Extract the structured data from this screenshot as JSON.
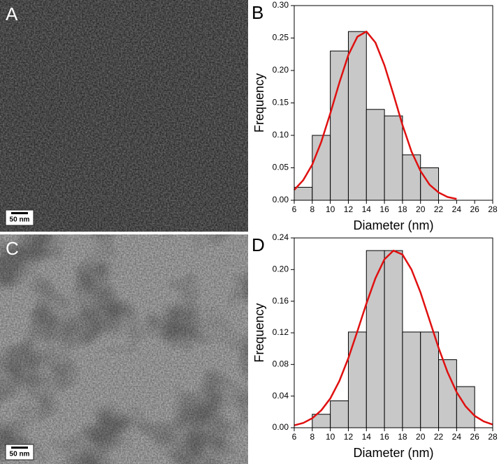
{
  "panels": [
    {
      "label": "A",
      "scale_bar": "50 nm"
    },
    {
      "label": "C",
      "scale_bar": "50 nm"
    }
  ],
  "chart_data": [
    {
      "type": "histogram",
      "panel_label": "B",
      "xlabel": "Diameter (nm)",
      "ylabel": "Frequency",
      "bins": [
        6,
        8,
        10,
        12,
        14,
        16,
        18,
        20,
        22
      ],
      "values": [
        0.02,
        0.1,
        0.23,
        0.26,
        0.14,
        0.13,
        0.07,
        0.05
      ],
      "color": "#c8c8c8",
      "fit": {
        "color": "#e01010",
        "x": [
          6,
          7,
          8,
          9,
          10,
          11,
          12,
          13,
          14,
          15,
          16,
          17,
          18,
          19,
          20,
          21,
          22,
          23,
          24
        ],
        "values": [
          0.016,
          0.031,
          0.055,
          0.09,
          0.134,
          0.181,
          0.224,
          0.252,
          0.26,
          0.243,
          0.208,
          0.163,
          0.116,
          0.075,
          0.045,
          0.024,
          0.012,
          0.005,
          0.002
        ]
      },
      "xlim": [
        6,
        28
      ],
      "xticks": [
        6,
        8,
        10,
        12,
        14,
        16,
        18,
        20,
        22,
        24,
        26,
        28
      ],
      "ylim": [
        0,
        0.3
      ],
      "yticks": [
        {
          "value": 0,
          "label": "0.00"
        },
        {
          "value": 0.05,
          "label": "0.05"
        },
        {
          "value": 0.1,
          "label": "0.10"
        },
        {
          "value": 0.15,
          "label": "0.15"
        },
        {
          "value": 0.2,
          "label": "0.20"
        },
        {
          "value": 0.25,
          "label": "0.25"
        },
        {
          "value": 0.3,
          "label": "0.30"
        }
      ]
    },
    {
      "type": "histogram",
      "panel_label": "D",
      "xlabel": "Diameter (nm)",
      "ylabel": "Frequency",
      "bins": [
        8,
        10,
        12,
        14,
        16,
        18,
        20,
        22,
        24,
        26
      ],
      "values": [
        0.017,
        0.034,
        0.121,
        0.224,
        0.224,
        0.121,
        0.121,
        0.086,
        0.052
      ],
      "color": "#c8c8c8",
      "fit": {
        "color": "#e01010",
        "x": [
          6,
          7,
          8,
          9,
          10,
          11,
          12,
          13,
          14,
          15,
          16,
          17,
          18,
          19,
          20,
          21,
          22,
          23,
          24,
          25,
          26,
          27,
          28
        ],
        "values": [
          0.003,
          0.006,
          0.012,
          0.022,
          0.037,
          0.059,
          0.088,
          0.122,
          0.157,
          0.189,
          0.213,
          0.224,
          0.219,
          0.2,
          0.171,
          0.136,
          0.101,
          0.07,
          0.045,
          0.027,
          0.015,
          0.008,
          0.004
        ]
      },
      "xlim": [
        6,
        28
      ],
      "xticks": [
        6,
        8,
        10,
        12,
        14,
        16,
        18,
        20,
        22,
        24,
        26,
        28
      ],
      "ylim": [
        0,
        0.24
      ],
      "yticks": [
        {
          "value": 0,
          "label": "0.00"
        },
        {
          "value": 0.04,
          "label": "0.04"
        },
        {
          "value": 0.08,
          "label": "0.08"
        },
        {
          "value": 0.12,
          "label": "0.12"
        },
        {
          "value": 0.16,
          "label": "0.16"
        },
        {
          "value": 0.2,
          "label": "0.20"
        },
        {
          "value": 0.24,
          "label": "0.24"
        }
      ]
    }
  ]
}
